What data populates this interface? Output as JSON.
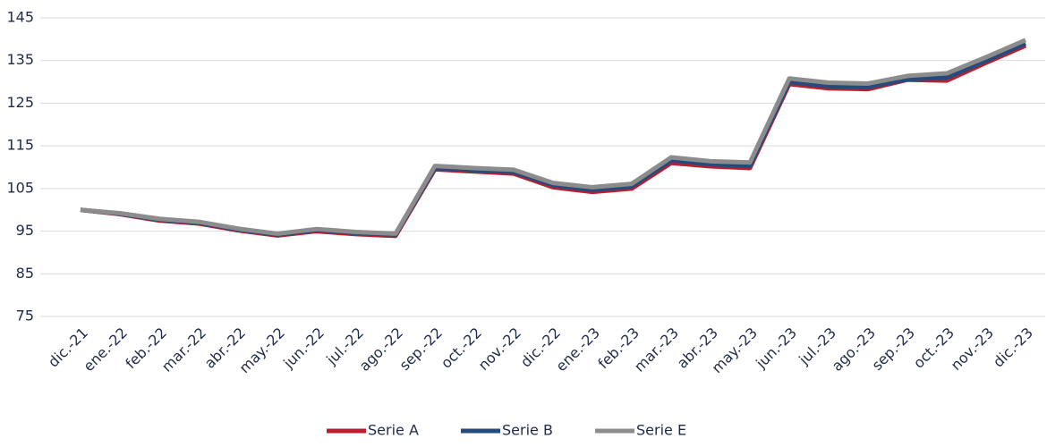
{
  "chart_data": {
    "type": "line",
    "categories": [
      "dic.-21",
      "ene.-22",
      "feb.-22",
      "mar.-22",
      "abr.-22",
      "may.-22",
      "jun.-22",
      "jul.-22",
      "ago.-22",
      "sep.-22",
      "oct.-22",
      "nov.-22",
      "dic.-22",
      "ene.-23",
      "feb.-23",
      "mar.-23",
      "abr.-23",
      "may.-23",
      "jun.-23",
      "jul.-23",
      "ago.-23",
      "sep.-23",
      "oct.-23",
      "nov.-23",
      "dic.-23"
    ],
    "series": [
      {
        "name": "Serie A",
        "color": "#b8202f",
        "values": [
          100,
          99,
          97.5,
          96.8,
          95.2,
          94,
          95,
          94.3,
          93.9,
          109.5,
          109,
          108.5,
          105.3,
          104.2,
          105,
          111,
          110.2,
          109.8,
          129.5,
          128.5,
          128.3,
          130.5,
          130.3,
          134.5,
          138.5
        ]
      },
      {
        "name": "Serie B",
        "color": "#254a7b",
        "values": [
          100,
          99.1,
          97.7,
          97,
          95.4,
          94.2,
          95.3,
          94.6,
          94.2,
          109.8,
          109.3,
          108.9,
          105.8,
          104.7,
          105.5,
          111.6,
          110.7,
          110.3,
          130,
          129,
          128.8,
          130.6,
          131,
          135,
          139
        ]
      },
      {
        "name": "Serie E",
        "color": "#8c8c8c",
        "values": [
          100,
          99.2,
          97.9,
          97.2,
          95.6,
          94.4,
          95.5,
          94.8,
          94.4,
          110.3,
          109.8,
          109.4,
          106.3,
          105.3,
          106.1,
          112.3,
          111.4,
          111.1,
          130.8,
          129.8,
          129.6,
          131.4,
          132,
          135.8,
          139.8
        ]
      }
    ],
    "ylim": [
      75,
      145
    ],
    "yticks": [
      75,
      85,
      95,
      105,
      115,
      125,
      135,
      145
    ],
    "grid": true,
    "legend": "bottom"
  }
}
